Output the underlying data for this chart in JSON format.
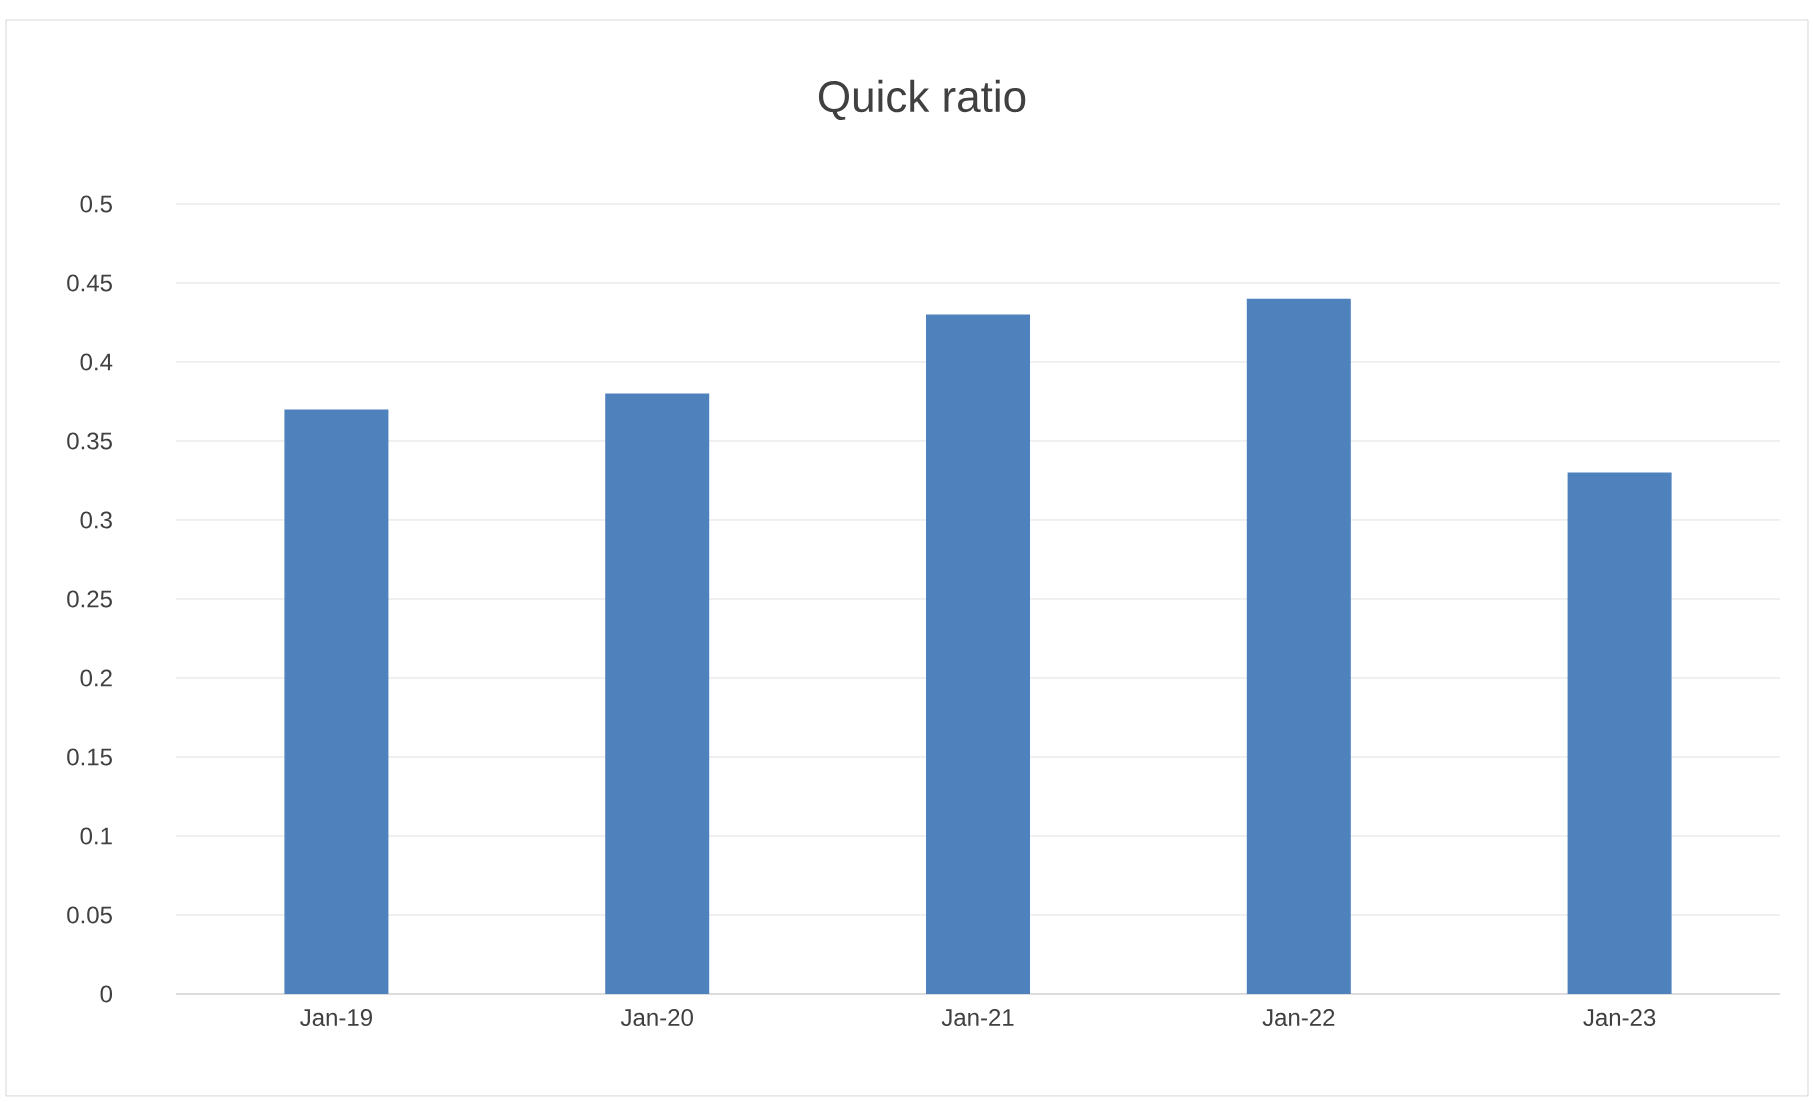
{
  "chart_data": {
    "type": "bar",
    "title": "Quick ratio",
    "categories": [
      "Jan-19",
      "Jan-20",
      "Jan-21",
      "Jan-22",
      "Jan-23"
    ],
    "values": [
      0.37,
      0.38,
      0.43,
      0.44,
      0.33
    ],
    "color": "#4f81bd",
    "ylim": [
      0,
      0.5
    ],
    "yticks": [
      0,
      0.05,
      0.1,
      0.15,
      0.2,
      0.25,
      0.3,
      0.35,
      0.4,
      0.45,
      0.5
    ],
    "grid": "y"
  }
}
